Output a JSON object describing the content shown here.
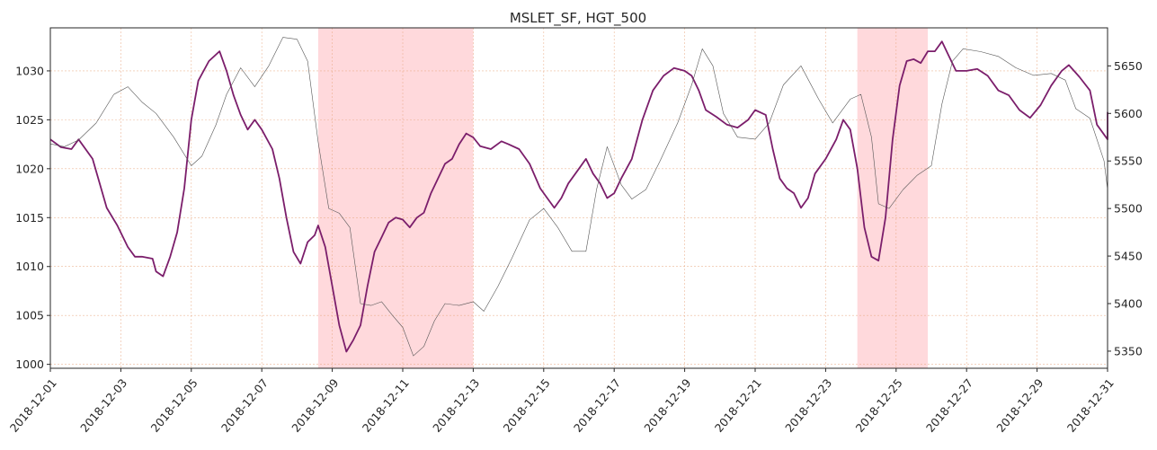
{
  "chart_data": {
    "type": "line",
    "title": "MSLET_SF, HGT_500",
    "x_range": [
      "2018-12-01",
      "2018-12-31"
    ],
    "x_ticks": [
      "2018-12-01",
      "2018-12-03",
      "2018-12-05",
      "2018-12-07",
      "2018-12-09",
      "2018-12-11",
      "2018-12-13",
      "2018-12-15",
      "2018-12-17",
      "2018-12-19",
      "2018-12-21",
      "2018-12-23",
      "2018-12-25",
      "2018-12-27",
      "2018-12-29",
      "2018-12-31"
    ],
    "y_left": {
      "range": [
        999.6,
        1034.4
      ],
      "ticks": [
        "1000",
        "1005",
        "1010",
        "1015",
        "1020",
        "1025",
        "1030"
      ]
    },
    "y_right": {
      "range": [
        5332,
        5690
      ],
      "ticks": [
        "5350",
        "5400",
        "5450",
        "5500",
        "5550",
        "5600",
        "5650"
      ]
    },
    "grid": true,
    "shaded_periods": [
      {
        "start": "2018-12-08.6",
        "end": "2018-12-13.0",
        "color": "#ffd9dc"
      },
      {
        "start": "2018-12-23.9",
        "end": "2018-12-25.9",
        "color": "#ffd9dc"
      }
    ],
    "series": [
      {
        "axis": "left",
        "color": "#7b1e6b",
        "width": 1.8,
        "points": [
          [
            "2018-12-01",
            1023
          ],
          [
            "2018-12-01.3",
            1022.2
          ],
          [
            "2018-12-01.6",
            1022
          ],
          [
            "2018-12-01.8",
            1023
          ],
          [
            "2018-12-02.2",
            1021
          ],
          [
            "2018-12-02.4",
            1018.5
          ],
          [
            "2018-12-02.6",
            1016
          ],
          [
            "2018-12-02.9",
            1014.2
          ],
          [
            "2018-12-03.2",
            1012
          ],
          [
            "2018-12-03.4",
            1011
          ],
          [
            "2018-12-03.6",
            1011
          ],
          [
            "2018-12-03.9",
            1010.8
          ],
          [
            "2018-12-04.0",
            1009.5
          ],
          [
            "2018-12-04.2",
            1009
          ],
          [
            "2018-12-04.4",
            1011
          ],
          [
            "2018-12-04.6",
            1013.5
          ],
          [
            "2018-12-04.8",
            1018
          ],
          [
            "2018-12-05.0",
            1025
          ],
          [
            "2018-12-05.2",
            1029
          ],
          [
            "2018-12-05.5",
            1031
          ],
          [
            "2018-12-05.8",
            1032
          ],
          [
            "2018-12-06.0",
            1030
          ],
          [
            "2018-12-06.2",
            1027.5
          ],
          [
            "2018-12-06.4",
            1025.5
          ],
          [
            "2018-12-06.6",
            1024
          ],
          [
            "2018-12-06.8",
            1025
          ],
          [
            "2018-12-07.0",
            1024
          ],
          [
            "2018-12-07.3",
            1022
          ],
          [
            "2018-12-07.5",
            1019
          ],
          [
            "2018-12-07.7",
            1015
          ],
          [
            "2018-12-07.9",
            1011.5
          ],
          [
            "2018-12-08.1",
            1010.3
          ],
          [
            "2018-12-08.3",
            1012.5
          ],
          [
            "2018-12-08.5",
            1013.2
          ],
          [
            "2018-12-08.6",
            1014.2
          ],
          [
            "2018-12-08.8",
            1012
          ],
          [
            "2018-12-09.0",
            1008
          ],
          [
            "2018-12-09.2",
            1004
          ],
          [
            "2018-12-09.4",
            1001.3
          ],
          [
            "2018-12-09.6",
            1002.5
          ],
          [
            "2018-12-09.8",
            1004
          ],
          [
            "2018-12-10.0",
            1008
          ],
          [
            "2018-12-10.2",
            1011.5
          ],
          [
            "2018-12-10.4",
            1013
          ],
          [
            "2018-12-10.6",
            1014.5
          ],
          [
            "2018-12-10.8",
            1015
          ],
          [
            "2018-12-11.0",
            1014.8
          ],
          [
            "2018-12-11.2",
            1014
          ],
          [
            "2018-12-11.4",
            1015
          ],
          [
            "2018-12-11.6",
            1015.5
          ],
          [
            "2018-12-11.8",
            1017.5
          ],
          [
            "2018-12-12.0",
            1019
          ],
          [
            "2018-12-12.2",
            1020.5
          ],
          [
            "2018-12-12.4",
            1021
          ],
          [
            "2018-12-12.6",
            1022.5
          ],
          [
            "2018-12-12.8",
            1023.6
          ],
          [
            "2018-12-13.0",
            1023.2
          ],
          [
            "2018-12-13.2",
            1022.3
          ],
          [
            "2018-12-13.5",
            1022
          ],
          [
            "2018-12-13.8",
            1022.8
          ],
          [
            "2018-12-14.0",
            1022.5
          ],
          [
            "2018-12-14.3",
            1022
          ],
          [
            "2018-12-14.6",
            1020.5
          ],
          [
            "2018-12-14.9",
            1018
          ],
          [
            "2018-12-15.1",
            1017
          ],
          [
            "2018-12-15.3",
            1016
          ],
          [
            "2018-12-15.5",
            1017
          ],
          [
            "2018-12-15.7",
            1018.5
          ],
          [
            "2018-12-16.0",
            1020
          ],
          [
            "2018-12-16.2",
            1021
          ],
          [
            "2018-12-16.4",
            1019.5
          ],
          [
            "2018-12-16.6",
            1018.5
          ],
          [
            "2018-12-16.8",
            1017
          ],
          [
            "2018-12-17.0",
            1017.5
          ],
          [
            "2018-12-17.2",
            1019
          ],
          [
            "2018-12-17.5",
            1021
          ],
          [
            "2018-12-17.8",
            1025
          ],
          [
            "2018-12-18.1",
            1028
          ],
          [
            "2018-12-18.4",
            1029.5
          ],
          [
            "2018-12-18.7",
            1030.3
          ],
          [
            "2018-12-19.0",
            1030
          ],
          [
            "2018-12-19.2",
            1029.5
          ],
          [
            "2018-12-19.4",
            1028
          ],
          [
            "2018-12-19.6",
            1026
          ],
          [
            "2018-12-19.9",
            1025.3
          ],
          [
            "2018-12-20.2",
            1024.5
          ],
          [
            "2018-12-20.5",
            1024.2
          ],
          [
            "2018-12-20.8",
            1025
          ],
          [
            "2018-12-21.0",
            1026
          ],
          [
            "2018-12-21.3",
            1025.5
          ],
          [
            "2018-12-21.5",
            1022
          ],
          [
            "2018-12-21.7",
            1019
          ],
          [
            "2018-12-21.9",
            1018
          ],
          [
            "2018-12-22.1",
            1017.5
          ],
          [
            "2018-12-22.3",
            1016
          ],
          [
            "2018-12-22.5",
            1017
          ],
          [
            "2018-12-22.7",
            1019.5
          ],
          [
            "2018-12-23.0",
            1021
          ],
          [
            "2018-12-23.3",
            1023
          ],
          [
            "2018-12-23.5",
            1025
          ],
          [
            "2018-12-23.7",
            1024
          ],
          [
            "2018-12-23.9",
            1020
          ],
          [
            "2018-12-24.1",
            1014
          ],
          [
            "2018-12-24.3",
            1011
          ],
          [
            "2018-12-24.5",
            1010.6
          ],
          [
            "2018-12-24.7",
            1015
          ],
          [
            "2018-12-24.9",
            1023
          ],
          [
            "2018-12-25.1",
            1028.5
          ],
          [
            "2018-12-25.3",
            1031
          ],
          [
            "2018-12-25.5",
            1031.2
          ],
          [
            "2018-12-25.7",
            1030.8
          ],
          [
            "2018-12-25.9",
            1032
          ],
          [
            "2018-12-26.1",
            1032
          ],
          [
            "2018-12-26.3",
            1033
          ],
          [
            "2018-12-26.5",
            1031.5
          ],
          [
            "2018-12-26.7",
            1030
          ],
          [
            "2018-12-27.0",
            1030
          ],
          [
            "2018-12-27.3",
            1030.2
          ],
          [
            "2018-12-27.6",
            1029.5
          ],
          [
            "2018-12-27.9",
            1028
          ],
          [
            "2018-12-28.2",
            1027.5
          ],
          [
            "2018-12-28.5",
            1026
          ],
          [
            "2018-12-28.8",
            1025.2
          ],
          [
            "2018-12-29.1",
            1026.5
          ],
          [
            "2018-12-29.4",
            1028.5
          ],
          [
            "2018-12-29.7",
            1030
          ],
          [
            "2018-12-29.9",
            1030.6
          ],
          [
            "2018-12-30.2",
            1029.4
          ],
          [
            "2018-12-30.5",
            1028
          ],
          [
            "2018-12-30.7",
            1024.5
          ],
          [
            "2018-12-31.0",
            1023
          ],
          [
            "2018-12-31.3",
            1023.2
          ],
          [
            "2018-12-31.6",
            1025
          ],
          [
            "2018-12-31.9",
            1025.8
          ]
        ]
      },
      {
        "axis": "right",
        "color": "#555555",
        "width": 0.6,
        "points": [
          [
            "2018-12-01",
            5568
          ],
          [
            "2018-12-01.4",
            5565
          ],
          [
            "2018-12-01.8",
            5572
          ],
          [
            "2018-12-02.3",
            5590
          ],
          [
            "2018-12-02.8",
            5620
          ],
          [
            "2018-12-03.2",
            5628
          ],
          [
            "2018-12-03.6",
            5612
          ],
          [
            "2018-12-04.0",
            5600
          ],
          [
            "2018-12-04.5",
            5575
          ],
          [
            "2018-12-05.0",
            5545
          ],
          [
            "2018-12-05.3",
            5555
          ],
          [
            "2018-12-05.7",
            5588
          ],
          [
            "2018-12-06.0",
            5620
          ],
          [
            "2018-12-06.4",
            5648
          ],
          [
            "2018-12-06.8",
            5628
          ],
          [
            "2018-12-07.2",
            5650
          ],
          [
            "2018-12-07.6",
            5680
          ],
          [
            "2018-12-08.0",
            5678
          ],
          [
            "2018-12-08.3",
            5655
          ],
          [
            "2018-12-08.6",
            5570
          ],
          [
            "2018-12-08.9",
            5500
          ],
          [
            "2018-12-09.2",
            5495
          ],
          [
            "2018-12-09.5",
            5480
          ],
          [
            "2018-12-09.8",
            5400
          ],
          [
            "2018-12-10.1",
            5398
          ],
          [
            "2018-12-10.4",
            5402
          ],
          [
            "2018-12-10.7",
            5388
          ],
          [
            "2018-12-11.0",
            5375
          ],
          [
            "2018-12-11.3",
            5345
          ],
          [
            "2018-12-11.6",
            5355
          ],
          [
            "2018-12-11.9",
            5382
          ],
          [
            "2018-12-12.2",
            5400
          ],
          [
            "2018-12-12.6",
            5398
          ],
          [
            "2018-12-13.0",
            5402
          ],
          [
            "2018-12-13.3",
            5392
          ],
          [
            "2018-12-13.7",
            5418
          ],
          [
            "2018-12-14.1",
            5448
          ],
          [
            "2018-12-14.6",
            5488
          ],
          [
            "2018-12-15.0",
            5500
          ],
          [
            "2018-12-15.4",
            5480
          ],
          [
            "2018-12-15.8",
            5455
          ],
          [
            "2018-12-16.2",
            5455
          ],
          [
            "2018-12-16.5",
            5520
          ],
          [
            "2018-12-16.8",
            5565
          ],
          [
            "2018-12-17.2",
            5525
          ],
          [
            "2018-12-17.5",
            5510
          ],
          [
            "2018-12-17.9",
            5520
          ],
          [
            "2018-12-18.3",
            5550
          ],
          [
            "2018-12-18.8",
            5590
          ],
          [
            "2018-12-19.2",
            5630
          ],
          [
            "2018-12-19.5",
            5668
          ],
          [
            "2018-12-19.8",
            5650
          ],
          [
            "2018-12-20.1",
            5600
          ],
          [
            "2018-12-20.5",
            5575
          ],
          [
            "2018-12-21.0",
            5573
          ],
          [
            "2018-12-21.4",
            5590
          ],
          [
            "2018-12-21.8",
            5630
          ],
          [
            "2018-12-22.3",
            5650
          ],
          [
            "2018-12-22.8",
            5615
          ],
          [
            "2018-12-23.2",
            5590
          ],
          [
            "2018-12-23.7",
            5615
          ],
          [
            "2018-12-24.0",
            5620
          ],
          [
            "2018-12-24.3",
            5575
          ],
          [
            "2018-12-24.5",
            5505
          ],
          [
            "2018-12-24.8",
            5500
          ],
          [
            "2018-12-25.2",
            5520
          ],
          [
            "2018-12-25.6",
            5535
          ],
          [
            "2018-12-26.0",
            5545
          ],
          [
            "2018-12-26.3",
            5610
          ],
          [
            "2018-12-26.6",
            5655
          ],
          [
            "2018-12-26.9",
            5668
          ],
          [
            "2018-12-27.4",
            5665
          ],
          [
            "2018-12-27.9",
            5660
          ],
          [
            "2018-12-28.4",
            5648
          ],
          [
            "2018-12-28.9",
            5640
          ],
          [
            "2018-12-29.4",
            5642
          ],
          [
            "2018-12-29.8",
            5635
          ],
          [
            "2018-12-30.1",
            5605
          ],
          [
            "2018-12-30.5",
            5595
          ],
          [
            "2018-12-30.9",
            5550
          ],
          [
            "2018-12-31.2",
            5520
          ],
          [
            "2018-12-31.6",
            5518
          ],
          [
            "2018-12-31.9",
            5522
          ]
        ]
      }
    ]
  }
}
